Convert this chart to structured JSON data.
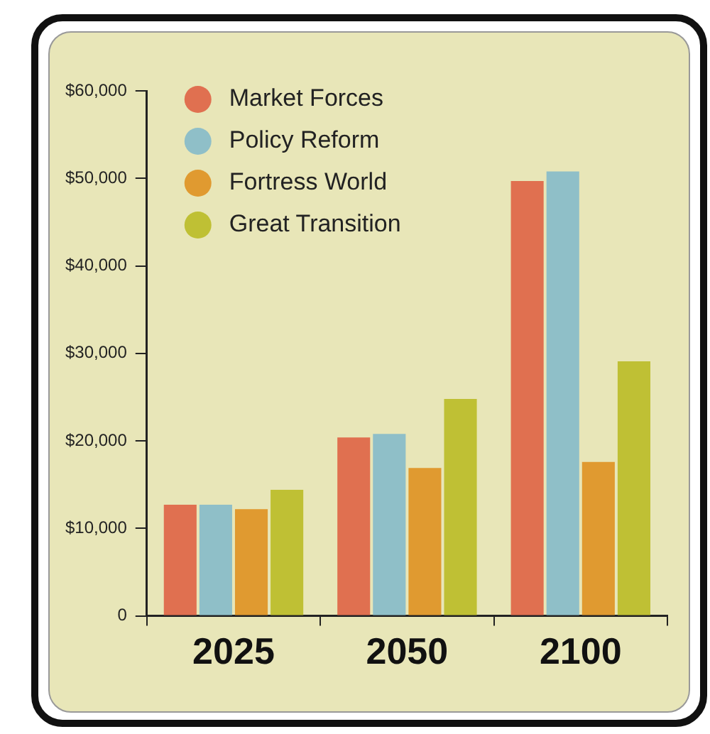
{
  "chart_data": {
    "type": "bar",
    "categories": [
      "2025",
      "2050",
      "2100"
    ],
    "series": [
      {
        "name": "Market Forces",
        "color": "#e07050",
        "values": [
          12700,
          20400,
          49700
        ]
      },
      {
        "name": "Policy Reform",
        "color": "#8fbfc8",
        "values": [
          12700,
          20800,
          50800
        ]
      },
      {
        "name": "Fortress World",
        "color": "#e09a30",
        "values": [
          12200,
          16900,
          17600
        ]
      },
      {
        "name": "Great Transition",
        "color": "#bfc034",
        "values": [
          14400,
          24800,
          29100
        ]
      }
    ],
    "ylim": [
      0,
      60000
    ],
    "yticks": [
      0,
      {
        "value": 10000,
        "label": "$10,000"
      },
      {
        "value": 20000,
        "label": "$20,000"
      },
      {
        "value": 30000,
        "label": "$30,000"
      },
      {
        "value": 40000,
        "label": "$40,000"
      },
      {
        "value": 50000,
        "label": "$50,000"
      },
      {
        "value": 60000,
        "label": "$60,000"
      }
    ],
    "grid": false,
    "legend": "top left"
  }
}
